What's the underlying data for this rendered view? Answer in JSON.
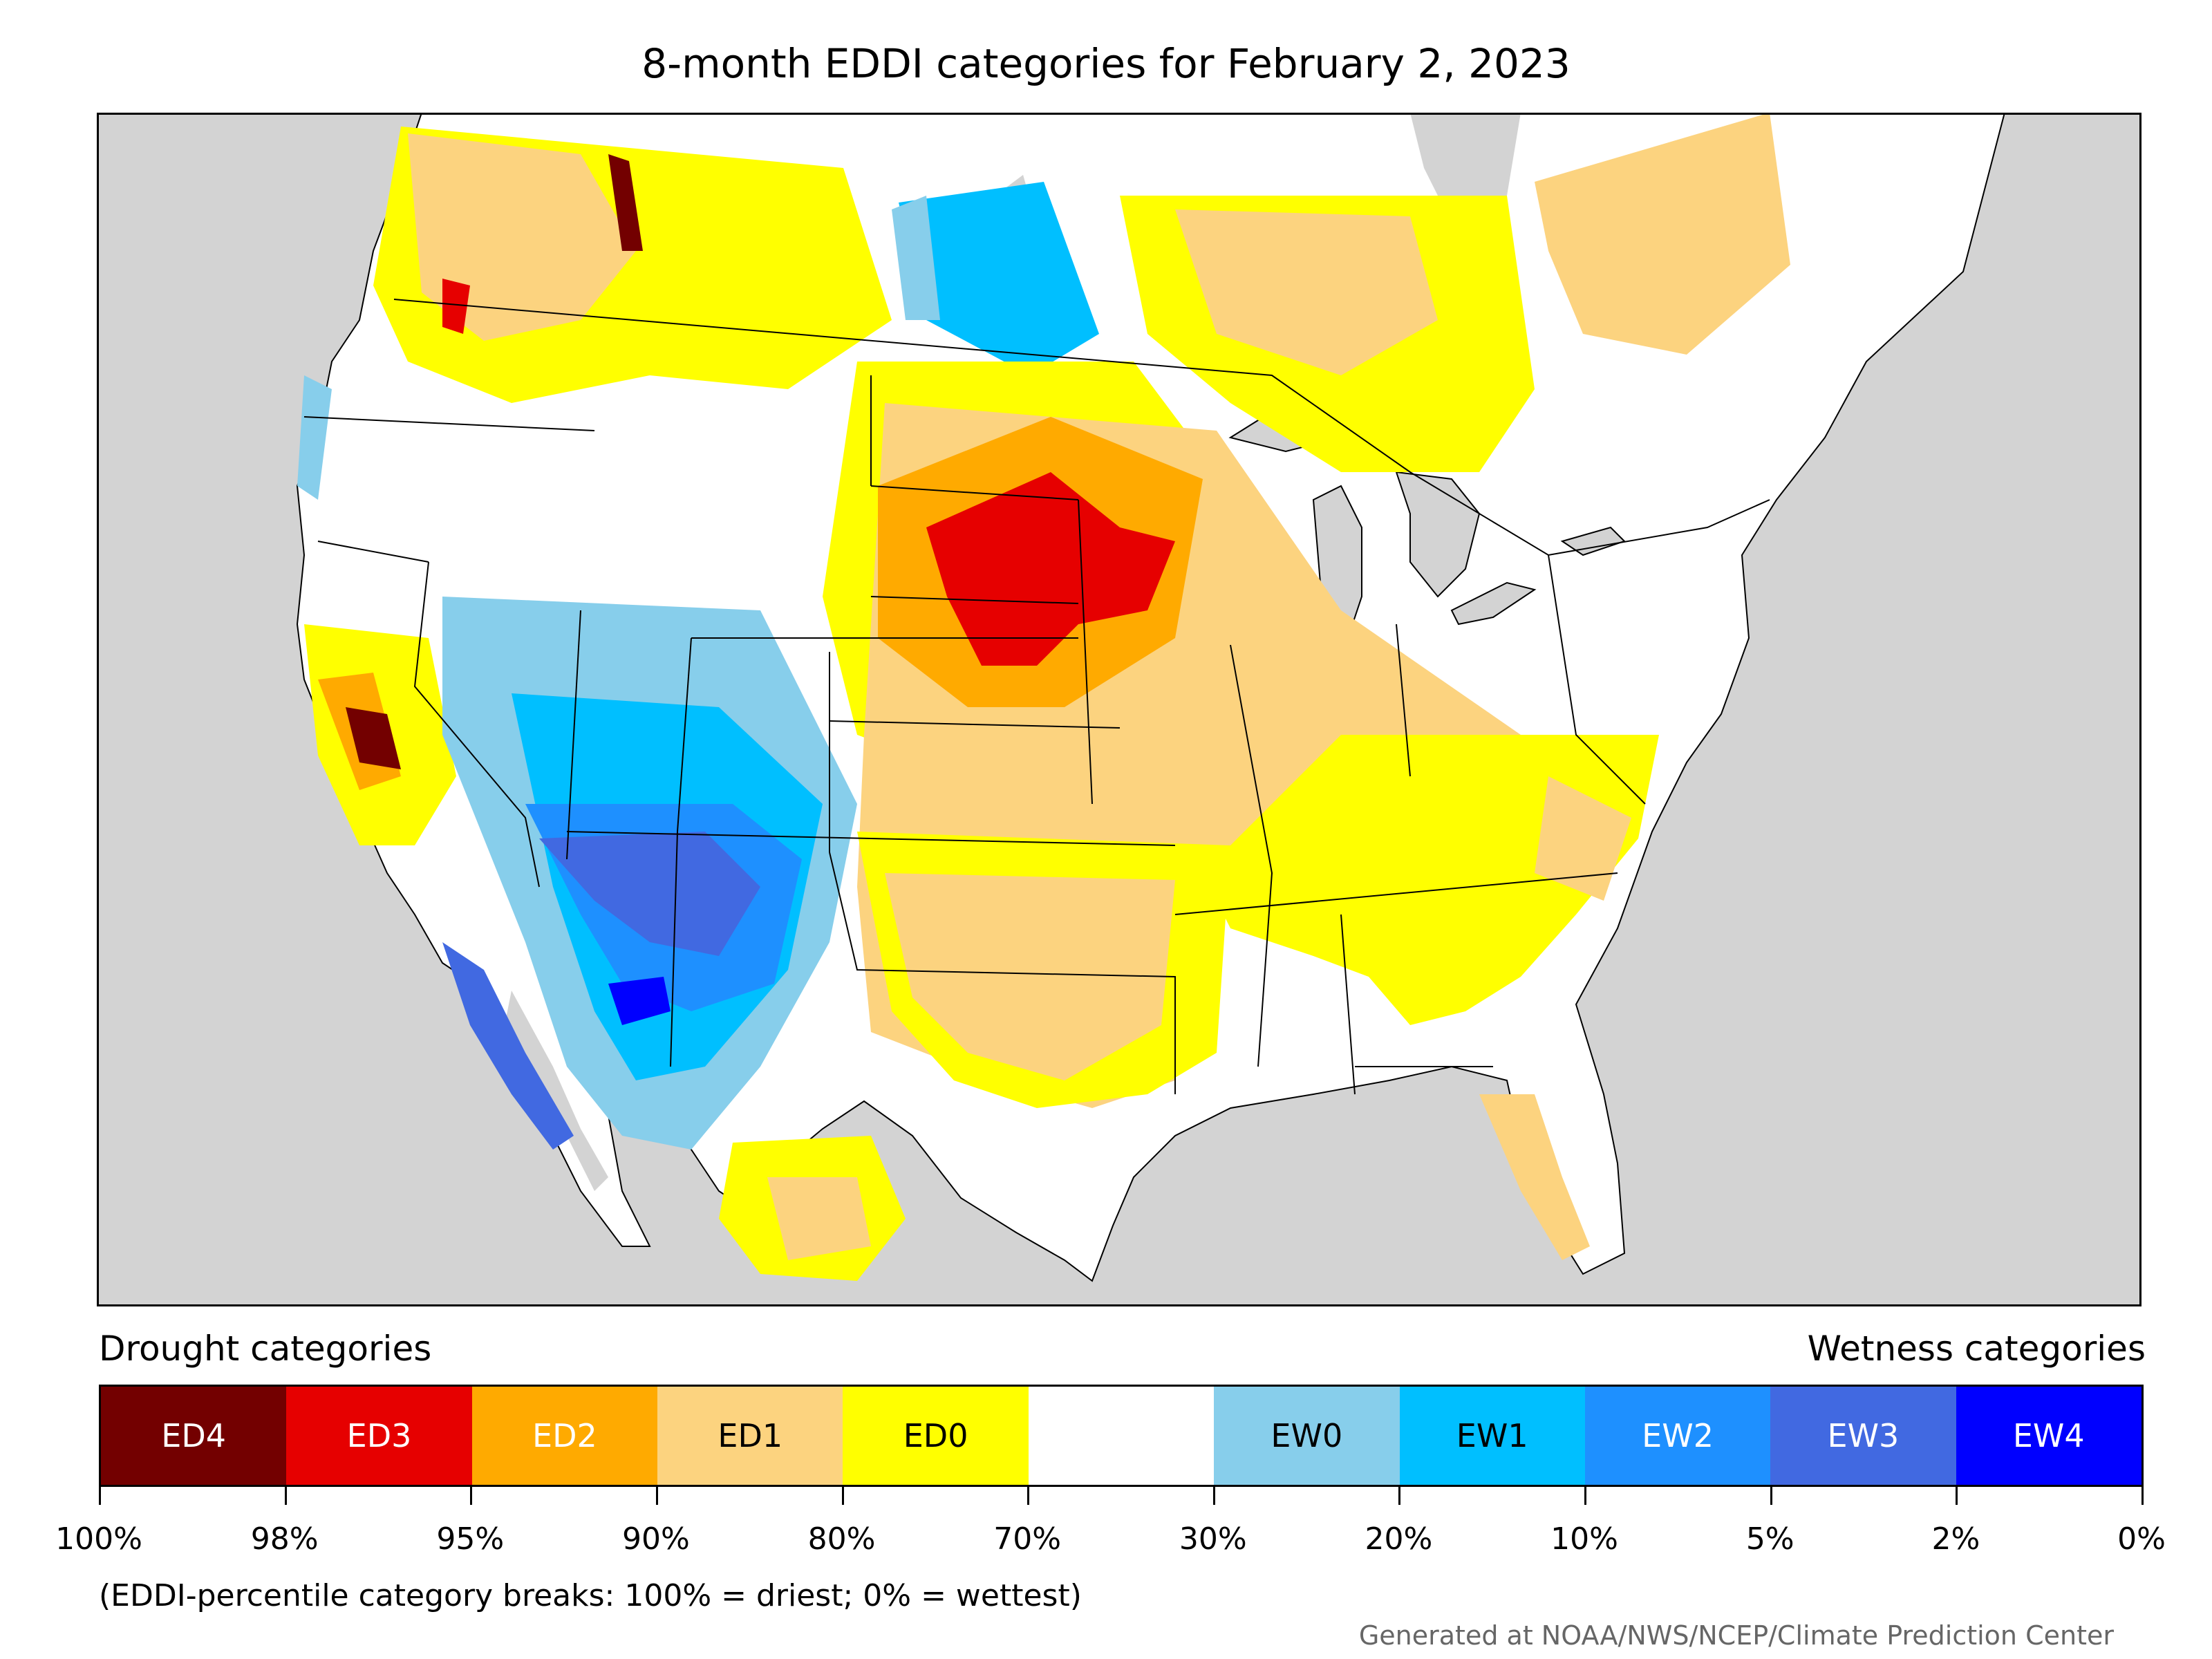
{
  "title": "8-month EDDI categories for February 2, 2023",
  "legend": {
    "drought_label": "Drought categories",
    "wetness_label": "Wetness categories",
    "categories": [
      {
        "label": "ED4",
        "color": "#730000",
        "text_color": "#ffffff"
      },
      {
        "label": "ED3",
        "color": "#e60000",
        "text_color": "#ffffff"
      },
      {
        "label": "ED2",
        "color": "#ffaa00",
        "text_color": "#ffffff"
      },
      {
        "label": "ED1",
        "color": "#fcd37f",
        "text_color": "#000000"
      },
      {
        "label": "ED0",
        "color": "#ffff00",
        "text_color": "#000000"
      },
      {
        "label": "",
        "color": "#ffffff",
        "text_color": "#000000"
      },
      {
        "label": "EW0",
        "color": "#87ceeb",
        "text_color": "#000000"
      },
      {
        "label": "EW1",
        "color": "#00bfff",
        "text_color": "#000000"
      },
      {
        "label": "EW2",
        "color": "#1e90ff",
        "text_color": "#ffffff"
      },
      {
        "label": "EW3",
        "color": "#4169e1",
        "text_color": "#ffffff"
      },
      {
        "label": "EW4",
        "color": "#0000ff",
        "text_color": "#ffffff"
      }
    ],
    "tick_labels": [
      "100%",
      "98%",
      "95%",
      "90%",
      "80%",
      "70%",
      "30%",
      "20%",
      "10%",
      "5%",
      "2%",
      "0%"
    ]
  },
  "note": "(EDDI-percentile category breaks: 100% = driest; 0% = wettest)",
  "credit": "Generated at NOAA/NWS/NCEP/Climate Prediction Center",
  "map_colors": {
    "ocean": "#d3d3d3",
    "land": "#ffffff",
    "lakes": "#d3d3d3"
  }
}
